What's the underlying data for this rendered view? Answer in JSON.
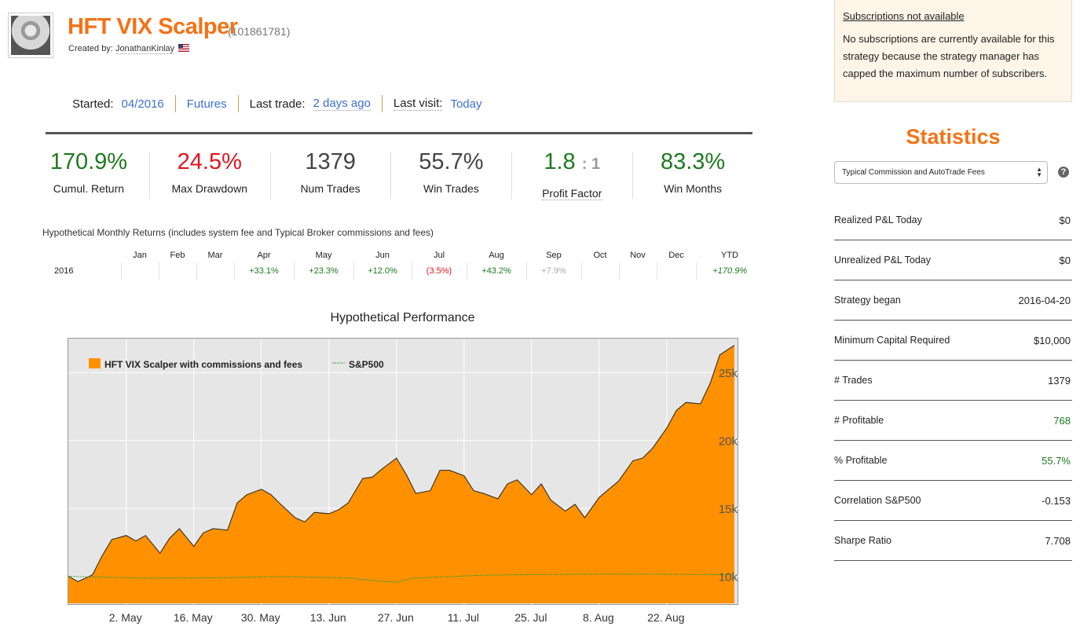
{
  "header": {
    "title": "HFT VIX Scalper",
    "id": "(101861781)",
    "created_by_label": "Created by:",
    "created_by_user": "JonathanKinlay"
  },
  "meta": {
    "started_label": "Started:",
    "started_value": "04/2016",
    "type": "Futures",
    "last_trade_label": "Last trade:",
    "last_trade_value": "2 days ago",
    "last_visit_label": "Last visit:",
    "last_visit_value": "Today"
  },
  "stats": {
    "cumul_return": "170.9%",
    "cumul_return_label": "Cumul. Return",
    "max_drawdown": "24.5%",
    "max_drawdown_label": "Max Drawdown",
    "num_trades": "1379",
    "num_trades_label": "Num Trades",
    "win_trades": "55.7%",
    "win_trades_label": "Win Trades",
    "profit_factor": "1.8",
    "profit_factor_ratio": ": 1",
    "profit_factor_label": "Profit Factor",
    "win_months": "83.3%",
    "win_months_label": "Win Months"
  },
  "monthly": {
    "title": "Hypothetical Monthly Returns (includes system fee and Typical Broker commissions and fees)",
    "headers": [
      "",
      "Jan",
      "Feb",
      "Mar",
      "Apr",
      "May",
      "Jun",
      "Jul",
      "Aug",
      "Sep",
      "Oct",
      "Nov",
      "Dec",
      "YTD"
    ],
    "row": [
      "2016",
      "",
      "",
      "",
      "+33.1%",
      "+23.3%",
      "+12.0%",
      "(3.5%)",
      "+43.2%",
      "+7.9%",
      "",
      "",
      "",
      "+170.9%"
    ]
  },
  "subscription": {
    "title": "Subscriptions not available",
    "text": "No subscriptions are currently available for this strategy because the strategy manager has capped the maximum number of subscribers."
  },
  "statistics": {
    "title": "Statistics",
    "select_value": "Typical Commission and AutoTrade Fees",
    "help": "?",
    "rows": [
      {
        "label": "Realized P&L Today",
        "value": "$0"
      },
      {
        "label": "Unrealized P&L Today",
        "value": "$0"
      },
      {
        "label": "Strategy began",
        "value": "2016-04-20"
      },
      {
        "label": "Minimum Capital Required",
        "value": "$10,000"
      },
      {
        "label": "# Trades",
        "value": "1379"
      },
      {
        "label": "# Profitable",
        "value": "768"
      },
      {
        "label": "% Profitable",
        "value": "55.7%"
      },
      {
        "label": "Correlation S&P500",
        "value": "-0.153"
      },
      {
        "label": "Sharpe Ratio",
        "value": "7.708"
      }
    ]
  },
  "colors": {
    "accent": "#f47216",
    "positive": "#1e7a1e",
    "negative": "#e0141e",
    "link": "#3b6fd6",
    "area": "#ff9100",
    "sp500": "#3a9a3a"
  },
  "chart_data": {
    "type": "area",
    "title": "Hypothetical Performance",
    "legend_placement": "top-left",
    "grid": true,
    "ylim": [
      8000,
      27500
    ],
    "y_ticks": [
      "10k",
      "15k",
      "20k",
      "25k"
    ],
    "y_tick_values": [
      10000,
      15000,
      20000,
      25000
    ],
    "x_ticks": [
      "2. May",
      "16. May",
      "30. May",
      "13. Jun",
      "27. Jun",
      "11. Jul",
      "25. Jul",
      "8. Aug",
      "22. Aug"
    ],
    "x_tick_dates": [
      "2016-05-02",
      "2016-05-16",
      "2016-05-30",
      "2016-06-13",
      "2016-06-27",
      "2016-07-11",
      "2016-07-25",
      "2016-08-08",
      "2016-08-22"
    ],
    "x_range": [
      "2016-04-20",
      "2016-09-06"
    ],
    "series": [
      {
        "name": "HFT VIX Scalper with commissions and fees",
        "x": [
          "2016-04-20",
          "2016-04-22",
          "2016-04-25",
          "2016-04-27",
          "2016-04-29",
          "2016-05-02",
          "2016-05-04",
          "2016-05-06",
          "2016-05-09",
          "2016-05-11",
          "2016-05-13",
          "2016-05-16",
          "2016-05-18",
          "2016-05-20",
          "2016-05-23",
          "2016-05-25",
          "2016-05-27",
          "2016-05-30",
          "2016-06-01",
          "2016-06-03",
          "2016-06-06",
          "2016-06-08",
          "2016-06-10",
          "2016-06-13",
          "2016-06-15",
          "2016-06-17",
          "2016-06-20",
          "2016-06-22",
          "2016-06-24",
          "2016-06-27",
          "2016-06-29",
          "2016-07-01",
          "2016-07-04",
          "2016-07-06",
          "2016-07-08",
          "2016-07-11",
          "2016-07-13",
          "2016-07-15",
          "2016-07-18",
          "2016-07-20",
          "2016-07-22",
          "2016-07-25",
          "2016-07-27",
          "2016-07-29",
          "2016-08-01",
          "2016-08-03",
          "2016-08-05",
          "2016-08-08",
          "2016-08-10",
          "2016-08-12",
          "2016-08-15",
          "2016-08-17",
          "2016-08-19",
          "2016-08-22",
          "2016-08-24",
          "2016-08-26",
          "2016-08-29",
          "2016-08-31",
          "2016-09-02",
          "2016-09-05"
        ],
        "values": [
          10000,
          9600,
          10100,
          11500,
          12700,
          13000,
          12600,
          13000,
          11700,
          12800,
          13500,
          12200,
          13200,
          13500,
          13400,
          15400,
          16000,
          16400,
          16000,
          15300,
          14300,
          14000,
          14700,
          14600,
          14900,
          15400,
          17200,
          17300,
          17900,
          18700,
          17500,
          16100,
          16300,
          17800,
          17800,
          17400,
          16300,
          16100,
          15700,
          16800,
          17100,
          16000,
          16800,
          15600,
          14800,
          15300,
          14300,
          15800,
          16400,
          17000,
          18500,
          18700,
          19400,
          20900,
          22200,
          22800,
          22700,
          24200,
          26300,
          27000
        ]
      },
      {
        "name": "S&P500",
        "x": [
          "2016-04-20",
          "2016-05-06",
          "2016-05-20",
          "2016-06-03",
          "2016-06-17",
          "2016-06-24",
          "2016-06-27",
          "2016-06-30",
          "2016-07-15",
          "2016-07-29",
          "2016-08-12",
          "2016-08-26",
          "2016-09-05"
        ],
        "values": [
          10000,
          9850,
          9880,
          9980,
          9870,
          9620,
          9550,
          9850,
          10080,
          10130,
          10160,
          10130,
          10100
        ]
      }
    ]
  }
}
